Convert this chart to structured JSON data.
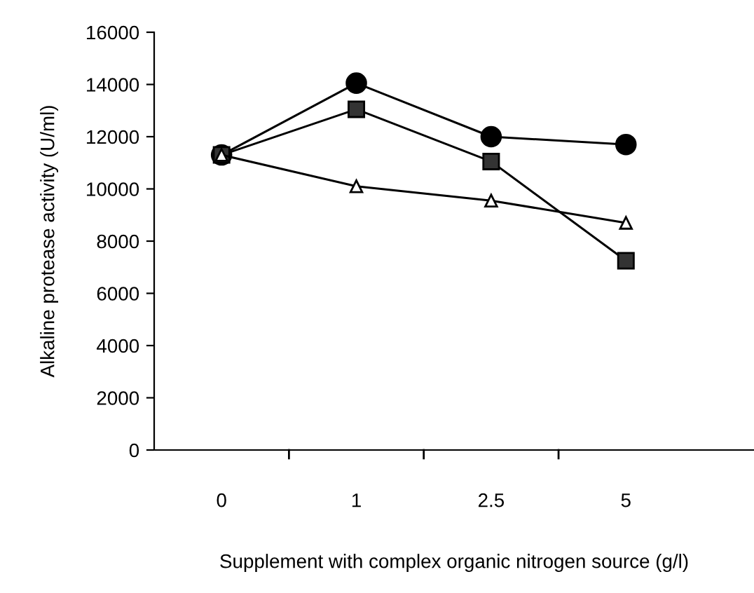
{
  "chart_data": {
    "type": "line",
    "xlabel": "Supplement with complex organic nitrogen source (g/l)",
    "ylabel": "Alkaline protease activity (U/ml)",
    "categories": [
      "0",
      "1",
      "2.5",
      "5"
    ],
    "series": [
      {
        "color": "#000000",
        "marker": "circle",
        "values": [
          11300,
          14050,
          12000,
          11700
        ]
      },
      {
        "color": "#000000",
        "marker": "square",
        "values": [
          11300,
          13050,
          11050,
          7250
        ]
      },
      {
        "color": "#000000",
        "marker": "triangle",
        "values": [
          11300,
          10100,
          9550,
          8700
        ]
      }
    ],
    "ylim": [
      0,
      16000
    ],
    "yticks": [
      0,
      2000,
      4000,
      6000,
      8000,
      10000,
      12000,
      14000,
      16000
    ],
    "grid": false,
    "legend": false,
    "line_style": "solid"
  }
}
